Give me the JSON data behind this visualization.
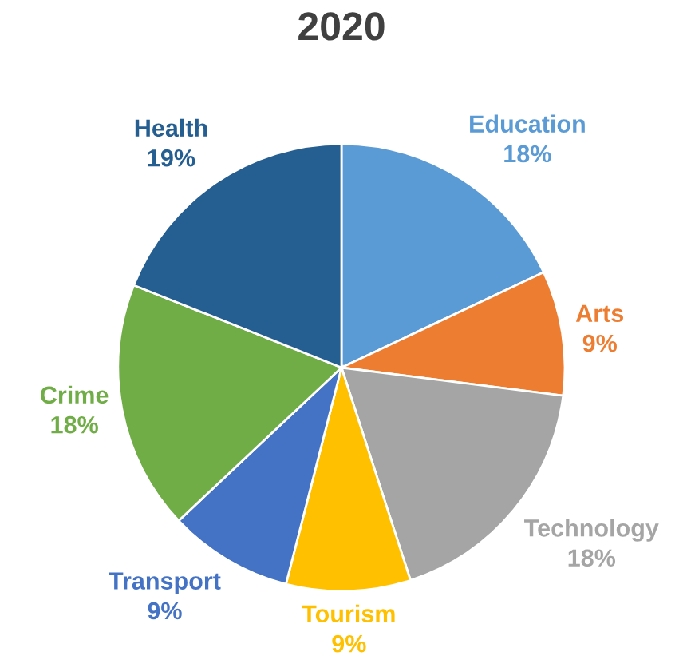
{
  "chart_data": {
    "type": "pie",
    "title": "2020",
    "categories": [
      "Education",
      "Arts",
      "Technology",
      "Tourism",
      "Transport",
      "Crime",
      "Health"
    ],
    "values": [
      18,
      9,
      18,
      9,
      9,
      18,
      19
    ],
    "value_labels": [
      "18%",
      "9%",
      "18%",
      "9%",
      "9%",
      "18%",
      "19%"
    ],
    "colors": [
      "#5b9bd5",
      "#ed7d31",
      "#a5a5a5",
      "#ffc000",
      "#4472c4",
      "#70ad47",
      "#255e91"
    ],
    "legend": false
  }
}
